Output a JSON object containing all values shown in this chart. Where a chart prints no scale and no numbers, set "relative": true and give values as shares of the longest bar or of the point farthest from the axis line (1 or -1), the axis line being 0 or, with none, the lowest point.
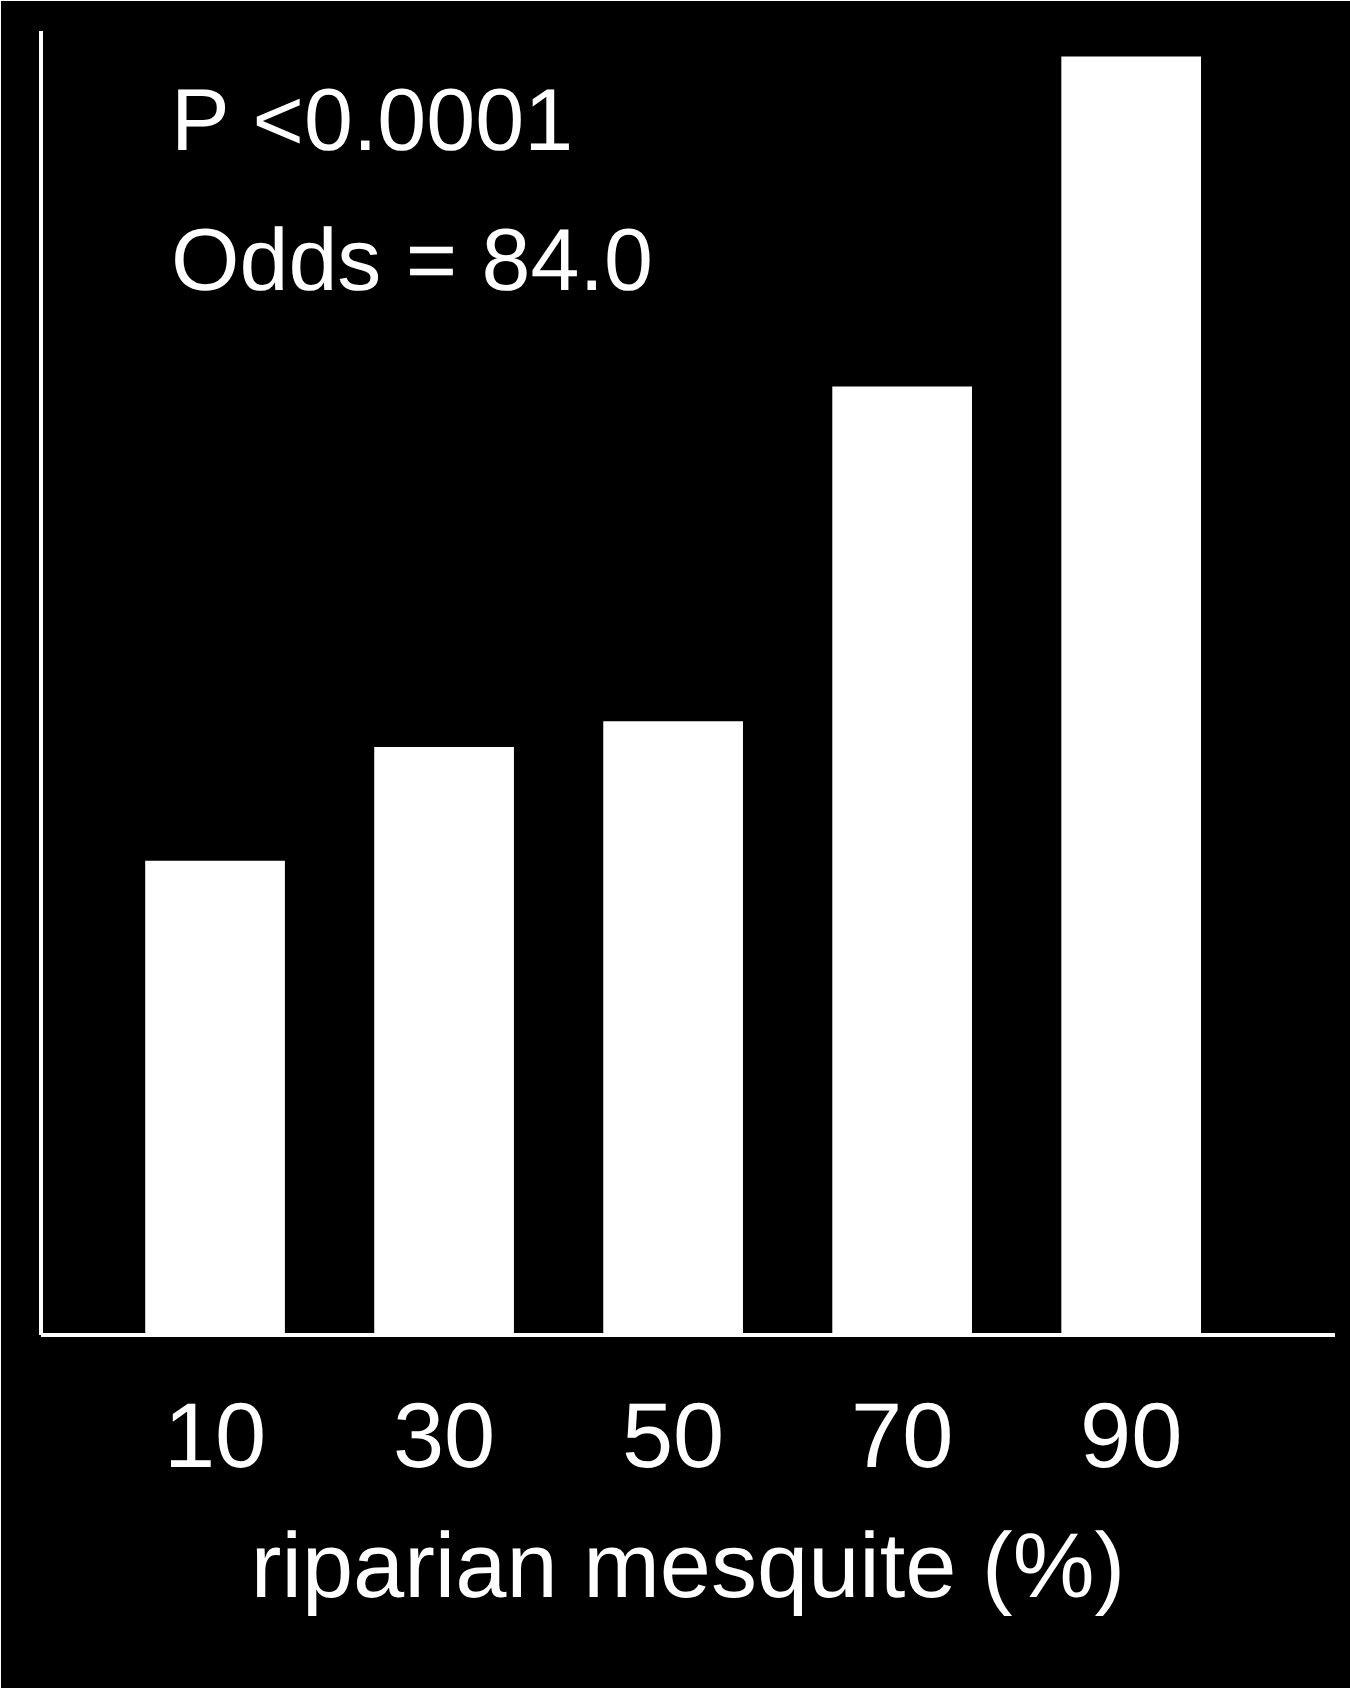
{
  "chart_data": {
    "type": "bar",
    "relative": true,
    "categories": [
      "10",
      "30",
      "50",
      "70",
      "90"
    ],
    "values": [
      0.371,
      0.46,
      0.48,
      0.742,
      1
    ],
    "color": "#ffffff",
    "xlabel": "riparian mesquite (%)",
    "annotations": [
      "P <0.0001",
      "Odds = 84.0"
    ],
    "grid": false
  }
}
